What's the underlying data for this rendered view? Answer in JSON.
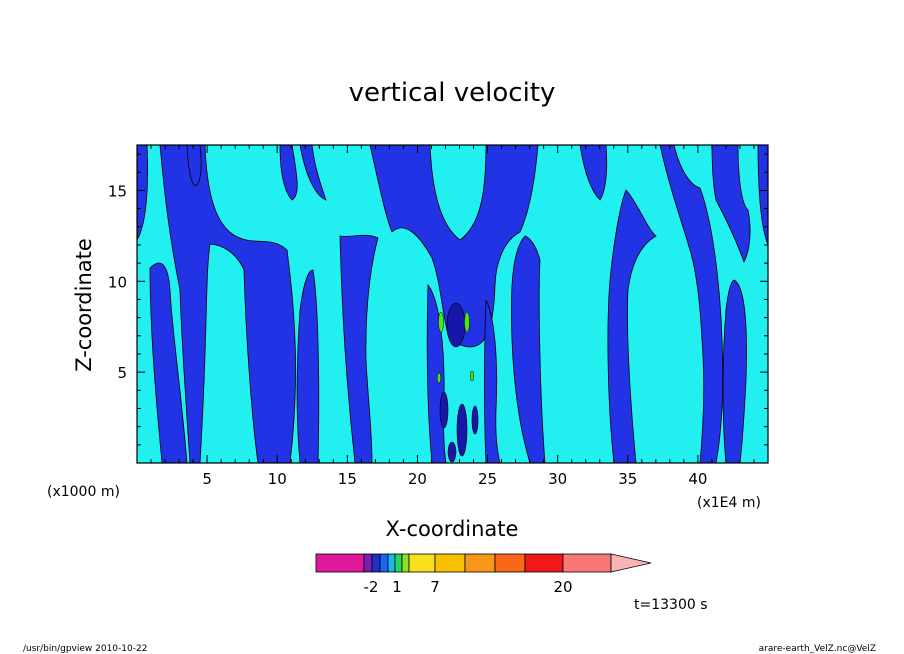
{
  "chart_data": {
    "type": "heatmap",
    "title": "vertical velocity",
    "xlabel": "X-coordinate",
    "ylabel": "Z-coordinate",
    "x_unit_left": "(x1000 m)",
    "x_unit_right": "(x1E4 m)",
    "xlim": [
      0,
      45
    ],
    "ylim": [
      0,
      17.5
    ],
    "x_ticks": [
      5,
      10,
      15,
      20,
      25,
      30,
      35,
      40
    ],
    "y_ticks": [
      5,
      10,
      15
    ],
    "colorbar": {
      "labels": [
        "-2",
        "1",
        "7",
        "20"
      ],
      "colors": [
        "#e0189c",
        "#7a1fb0",
        "#2230c8",
        "#1a64f0",
        "#18b8e8",
        "#20d860",
        "#90e020",
        "#f8e020",
        "#f8c000",
        "#f89818",
        "#f86818",
        "#f01818",
        "#f87878",
        "#f8b4b4"
      ]
    },
    "fields": {
      "background_color": "#22f0f0",
      "contour_color": "#2233e6",
      "deep_color": "#1616a8",
      "accent_color": "#44e81c"
    },
    "time_label": "t=13300 s"
  },
  "footer": {
    "left": "/usr/bin/gpview  2010-10-22",
    "right": "arare-earth_VelZ.nc@VelZ"
  }
}
